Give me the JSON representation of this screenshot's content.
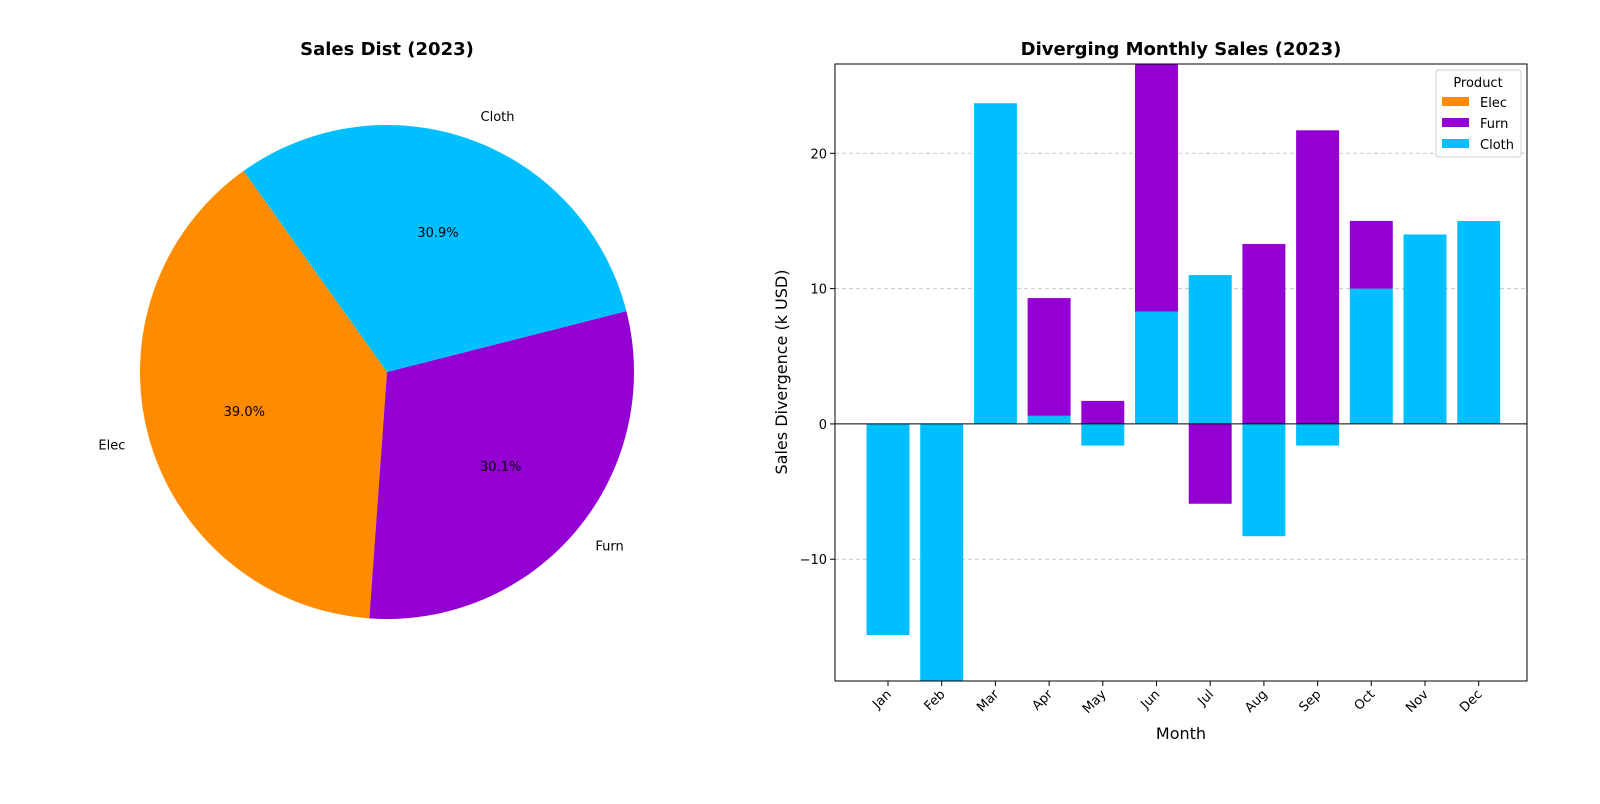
{
  "chart_data": [
    {
      "type": "pie",
      "title": "Sales Dist (2023)",
      "labels": [
        "Elec",
        "Furn",
        "Cloth"
      ],
      "values": [
        39.0,
        30.1,
        30.9
      ],
      "pct_labels": [
        "39.0%",
        "30.1%",
        "30.9%"
      ],
      "colors": [
        "#ff8c00",
        "#9400d3",
        "#00bfff"
      ],
      "start_angle_deg": 125.5,
      "direction": "counterclockwise"
    },
    {
      "type": "bar",
      "stacked": "diverging",
      "title": "Diverging Monthly Sales (2023)",
      "xlabel": "Month",
      "ylabel": "Sales Divergence (k USD)",
      "ylim": [
        -19,
        26.6
      ],
      "yticks": [
        -10,
        0,
        10,
        20
      ],
      "ytick_labels": [
        "−10",
        "0",
        "10",
        "20"
      ],
      "grid": "horizontal dashed",
      "zero_line": true,
      "categories": [
        "Jan",
        "Feb",
        "Mar",
        "Apr",
        "May",
        "Jun",
        "Jul",
        "Aug",
        "Sep",
        "Oct",
        "Nov",
        "Dec"
      ],
      "series": [
        {
          "name": "Elec",
          "color": "#ff8c00",
          "values": [
            0,
            0,
            0,
            0,
            0,
            0,
            0,
            0,
            0,
            0,
            0,
            0
          ]
        },
        {
          "name": "Furn",
          "color": "#9400d3",
          "values": [
            0,
            0,
            0,
            8.7,
            1.7,
            18.3,
            -5.9,
            13.3,
            21.7,
            5.0,
            0,
            0
          ]
        },
        {
          "name": "Cloth",
          "color": "#00bfff",
          "values": [
            -15.6,
            -19.0,
            23.7,
            0.6,
            -1.6,
            8.3,
            11.0,
            -8.3,
            -1.6,
            10.0,
            14.0,
            15.0
          ]
        }
      ],
      "legend": {
        "title": "Product",
        "position": "upper right"
      }
    }
  ]
}
